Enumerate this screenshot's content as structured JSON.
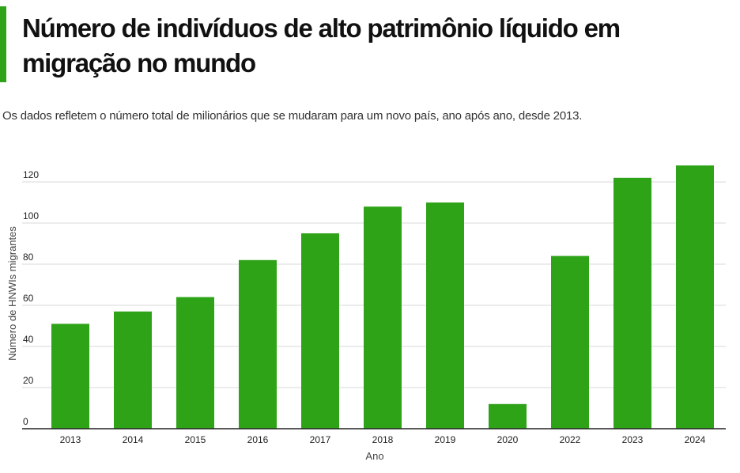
{
  "header": {
    "title": "Número de indivíduos de alto patrimônio líquido em migração no mundo",
    "subtitle": "Os dados refletem o número total de milionários que se mudaram para um novo país, ano após ano, desde 2013."
  },
  "colors": {
    "accent": "#2ea318",
    "bar": "#2ea318",
    "gridline": "#d9d9d9",
    "axis": "#222222",
    "text": "#222222"
  },
  "chart_data": {
    "type": "bar",
    "categories": [
      "2013",
      "2014",
      "2015",
      "2016",
      "2017",
      "2018",
      "2019",
      "2020",
      "2022",
      "2023",
      "2024"
    ],
    "values": [
      51,
      57,
      64,
      82,
      95,
      108,
      110,
      12,
      84,
      122,
      128
    ],
    "xlabel": "Ano",
    "ylabel": "Número de HNWIs migrantes",
    "ylim": [
      0,
      130
    ],
    "yticks": [
      0,
      20,
      40,
      60,
      80,
      100,
      120
    ],
    "grid": true,
    "legend": "none"
  }
}
